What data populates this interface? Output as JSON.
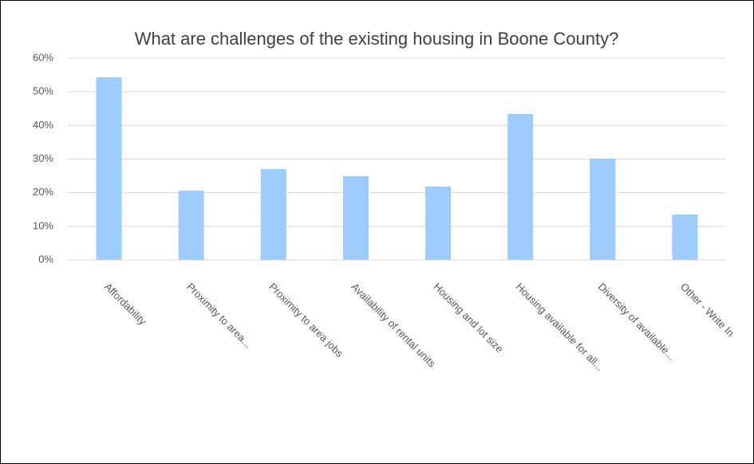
{
  "chart_data": {
    "type": "bar",
    "title": "What are challenges of the existing housing in Boone County?",
    "categories": [
      "Affordability",
      "Proximity to area...",
      "Proximity to area jobs",
      "Availability of rental units",
      "Housing and lot size",
      "Housing available for all...",
      "Diversity of available...",
      "Other - Write In"
    ],
    "values": [
      54.3,
      20.6,
      27.0,
      24.9,
      21.8,
      43.4,
      30.1,
      13.5
    ],
    "color": "#9dcbfb",
    "ylim": [
      0,
      60
    ],
    "yticks": [
      {
        "value": 0,
        "label": "0%"
      },
      {
        "value": 10,
        "label": "10%"
      },
      {
        "value": 20,
        "label": "20%"
      },
      {
        "value": 30,
        "label": "30%"
      },
      {
        "value": 40,
        "label": "40%"
      },
      {
        "value": 50,
        "label": "50%"
      },
      {
        "value": 60,
        "label": "60%"
      }
    ],
    "grid": true
  }
}
